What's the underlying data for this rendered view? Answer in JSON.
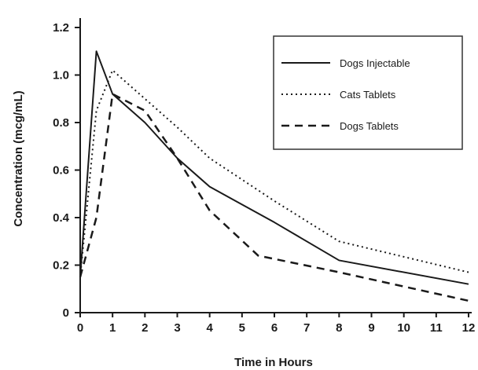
{
  "chart_data": {
    "type": "line",
    "xlabel": "Time in Hours",
    "ylabel": "Concentration (mcg/mL)",
    "xlim": [
      0,
      12
    ],
    "ylim": [
      0,
      1.2
    ],
    "x_ticks": [
      0,
      1,
      2,
      3,
      4,
      5,
      6,
      7,
      8,
      9,
      10,
      11,
      12
    ],
    "y_ticks": [
      0,
      0.2,
      0.4,
      0.6,
      0.8,
      1.0,
      1.2
    ],
    "y_tick_labels": [
      "0",
      "0.2",
      "0.4",
      "0.6",
      "0.8",
      "1.0",
      "1.2"
    ],
    "grid": false,
    "legend_position": "top-right",
    "series": [
      {
        "name": "Dogs Injectable",
        "style": "solid",
        "x": [
          0,
          0.5,
          1,
          2,
          3,
          4,
          6,
          8,
          12
        ],
        "y": [
          0.15,
          1.1,
          0.92,
          0.8,
          0.65,
          0.53,
          0.38,
          0.22,
          0.12
        ]
      },
      {
        "name": "Cats Tablets",
        "style": "dotted",
        "x": [
          0,
          0.5,
          1,
          2,
          3,
          4,
          6,
          8,
          12
        ],
        "y": [
          0.15,
          0.85,
          1.02,
          0.9,
          0.78,
          0.65,
          0.47,
          0.3,
          0.17
        ]
      },
      {
        "name": "Dogs  Tablets",
        "style": "dashed",
        "x": [
          0,
          0.5,
          1,
          2,
          3,
          4,
          5.5,
          8,
          12
        ],
        "y": [
          0.15,
          0.4,
          0.92,
          0.85,
          0.65,
          0.43,
          0.24,
          0.17,
          0.05
        ]
      }
    ]
  }
}
